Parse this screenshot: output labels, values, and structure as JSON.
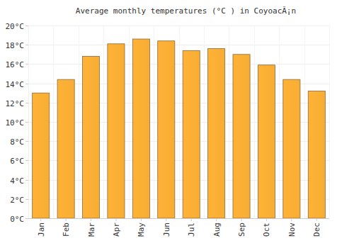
{
  "chart_data": {
    "type": "bar",
    "title": "Average monthly temperatures (°C ) in CoyoacÃ¡n",
    "categories": [
      "Jan",
      "Feb",
      "Mar",
      "Apr",
      "May",
      "Jun",
      "Jul",
      "Aug",
      "Sep",
      "Oct",
      "Nov",
      "Dec"
    ],
    "values": [
      13.0,
      14.4,
      16.8,
      18.1,
      18.6,
      18.4,
      17.4,
      17.6,
      17.0,
      15.9,
      14.4,
      13.2
    ],
    "color": "#ffb236",
    "ylim": [
      0,
      20
    ],
    "yticks": [
      {
        "value": 0,
        "label": "0°C"
      },
      {
        "value": 2,
        "label": "2°C"
      },
      {
        "value": 4,
        "label": "4°C"
      },
      {
        "value": 6,
        "label": "6°C"
      },
      {
        "value": 8,
        "label": "8°C"
      },
      {
        "value": 10,
        "label": "10°C"
      },
      {
        "value": 12,
        "label": "12°C"
      },
      {
        "value": 14,
        "label": "14°C"
      },
      {
        "value": 16,
        "label": "16°C"
      },
      {
        "value": 18,
        "label": "18°C"
      },
      {
        "value": 20,
        "label": "20°C"
      }
    ],
    "grid": true
  }
}
